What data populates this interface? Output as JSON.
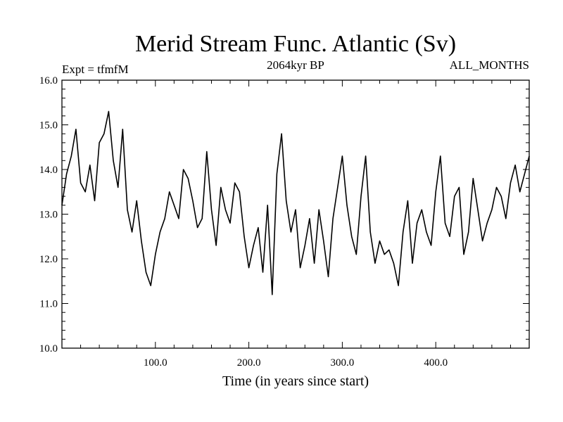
{
  "chart_data": {
    "type": "line",
    "title": "Merid Stream Func. Atlantic (Sv)",
    "subtitle_left": "Expt = tfmfM",
    "subtitle_center": "2064kyr BP",
    "subtitle_right": "ALL_MONTHS",
    "xlabel": "Time (in years since start)",
    "ylabel": "",
    "xlim": [
      0,
      500
    ],
    "ylim": [
      10.0,
      16.0
    ],
    "x_ticks": [
      {
        "value": 100,
        "label": "100.0"
      },
      {
        "value": 200,
        "label": "200.0"
      },
      {
        "value": 300,
        "label": "300.0"
      },
      {
        "value": 400,
        "label": "400.0"
      }
    ],
    "y_ticks": [
      {
        "value": 10,
        "label": "10.0"
      },
      {
        "value": 11,
        "label": "11.0"
      },
      {
        "value": 12,
        "label": "12.0"
      },
      {
        "value": 13,
        "label": "13.0"
      },
      {
        "value": 14,
        "label": "14.0"
      },
      {
        "value": 15,
        "label": "15.0"
      },
      {
        "value": 16,
        "label": "16.0"
      }
    ],
    "series": [
      {
        "name": "Merid Stream Func. Atlantic",
        "x": [
          0,
          5,
          10,
          15,
          20,
          25,
          30,
          35,
          40,
          45,
          50,
          55,
          60,
          65,
          70,
          75,
          80,
          85,
          90,
          95,
          100,
          105,
          110,
          115,
          120,
          125,
          130,
          135,
          140,
          145,
          150,
          155,
          160,
          165,
          170,
          175,
          180,
          185,
          190,
          195,
          200,
          205,
          210,
          215,
          220,
          225,
          230,
          235,
          240,
          245,
          250,
          255,
          260,
          265,
          270,
          275,
          280,
          285,
          290,
          295,
          300,
          305,
          310,
          315,
          320,
          325,
          330,
          335,
          340,
          345,
          350,
          355,
          360,
          365,
          370,
          375,
          380,
          385,
          390,
          395,
          400,
          405,
          410,
          415,
          420,
          425,
          430,
          435,
          440,
          445,
          450,
          455,
          460,
          465,
          470,
          475,
          480,
          485,
          490,
          495,
          500
        ],
        "values": [
          13.2,
          13.9,
          14.3,
          14.9,
          13.7,
          13.5,
          14.1,
          13.3,
          14.6,
          14.8,
          15.3,
          14.2,
          13.6,
          14.9,
          13.1,
          12.6,
          13.3,
          12.4,
          11.7,
          11.4,
          12.1,
          12.6,
          12.9,
          13.5,
          13.2,
          12.9,
          14.0,
          13.8,
          13.3,
          12.7,
          12.9,
          14.4,
          13.1,
          12.3,
          13.6,
          13.1,
          12.8,
          13.7,
          13.5,
          12.5,
          11.8,
          12.3,
          12.7,
          11.7,
          13.2,
          11.2,
          13.9,
          14.8,
          13.3,
          12.6,
          13.1,
          11.8,
          12.3,
          12.9,
          11.9,
          13.1,
          12.4,
          11.6,
          12.9,
          13.6,
          14.3,
          13.2,
          12.5,
          12.1,
          13.4,
          14.3,
          12.6,
          11.9,
          12.4,
          12.1,
          12.2,
          11.9,
          11.4,
          12.6,
          13.3,
          11.9,
          12.8,
          13.1,
          12.6,
          12.3,
          13.5,
          14.3,
          12.8,
          12.5,
          13.4,
          13.6,
          12.1,
          12.6,
          13.8,
          13.1,
          12.4,
          12.8,
          13.1,
          13.6,
          13.4,
          12.9,
          13.7,
          14.1,
          13.5,
          13.9,
          14.3
        ]
      }
    ]
  }
}
